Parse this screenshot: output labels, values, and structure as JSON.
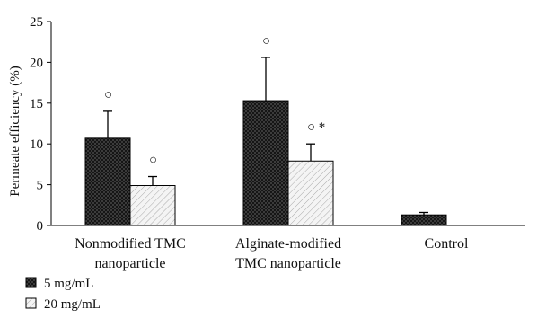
{
  "chart_data": {
    "type": "bar",
    "ylabel": "Permeate efficiency (%)",
    "ylim": [
      0,
      25
    ],
    "yticks": [
      0,
      5,
      10,
      15,
      20,
      25
    ],
    "groups": [
      {
        "label_lines": [
          "Nonmodified TMC",
          "nanoparticle"
        ]
      },
      {
        "label_lines": [
          "Alginate-modified",
          "TMC nanoparticle"
        ]
      },
      {
        "label_lines": [
          "Control"
        ]
      }
    ],
    "series": [
      {
        "name": "5 mg/mL",
        "pattern": "crosshatch-dark",
        "values": [
          10.7,
          15.3,
          1.3
        ],
        "errors": [
          3.3,
          5.3,
          0.3
        ]
      },
      {
        "name": "20 mg/mL",
        "pattern": "diagonal-light",
        "values": [
          4.9,
          7.9,
          null
        ],
        "errors": [
          1.1,
          2.1,
          null
        ]
      }
    ],
    "annotations": [
      {
        "group": 0,
        "series": 0,
        "text": "○"
      },
      {
        "group": 0,
        "series": 1,
        "text": "○"
      },
      {
        "group": 1,
        "series": 0,
        "text": "○"
      },
      {
        "group": 1,
        "series": 1,
        "text": "○ *"
      }
    ],
    "legend_position": "bottom-left",
    "colors": {
      "dark_fill": "#3a3a3a",
      "light_fill": "#e6e6e6",
      "stroke": "#000000"
    }
  }
}
